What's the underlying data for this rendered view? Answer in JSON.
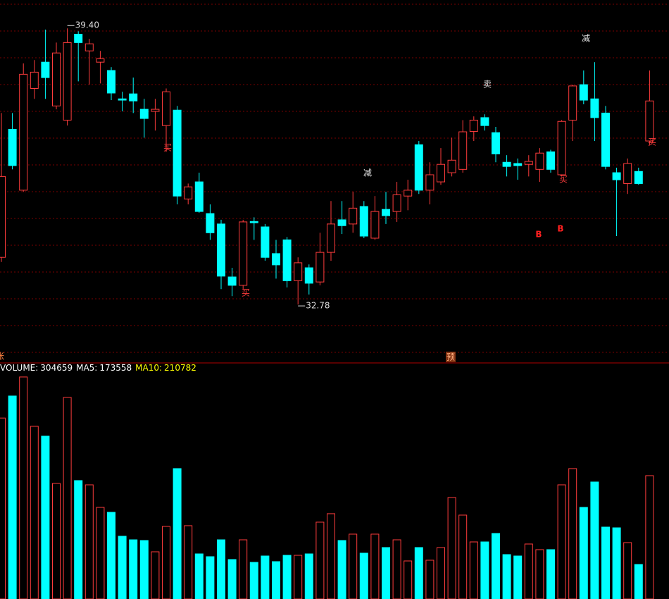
{
  "chart_data": [
    {
      "type": "candlestick",
      "open": [
        33.91,
        36.98,
        35.52,
        37.96,
        38.59,
        37.54,
        37.2,
        39.26,
        38.86,
        38.59,
        38.39,
        37.71,
        37.83,
        37.46,
        37.41,
        37.07,
        37.44,
        35.31,
        35.72,
        34.96,
        34.71,
        33.44,
        33.24,
        34.77,
        34.64,
        34.0,
        34.33,
        33.35,
        33.66,
        33.32,
        34.03,
        34.81,
        34.71,
        35.13,
        34.37,
        35.06,
        35.01,
        35.38,
        36.61,
        35.52,
        35.72,
        35.94,
        36.02,
        36.93,
        37.26,
        36.9,
        36.19,
        36.16,
        36.14,
        36.02,
        36.44,
        35.89,
        37.2,
        38.05,
        37.71,
        37.37,
        35.94,
        35.68,
        35.97,
        36.7
      ],
      "high": [
        37.37,
        37.37,
        38.56,
        38.64,
        39.37,
        39.06,
        39.4,
        39.33,
        39.15,
        38.86,
        38.47,
        37.88,
        38.22,
        37.71,
        37.71,
        37.96,
        37.54,
        35.68,
        35.94,
        35.18,
        34.81,
        33.66,
        34.81,
        34.87,
        34.71,
        34.33,
        34.4,
        33.91,
        33.74,
        34.5,
        35.26,
        35.26,
        35.48,
        35.26,
        35.38,
        35.48,
        35.72,
        35.77,
        36.7,
        36.19,
        36.53,
        36.78,
        37.2,
        37.29,
        37.34,
        37.04,
        36.36,
        36.28,
        36.36,
        36.53,
        36.49,
        37.2,
        38.05,
        38.39,
        38.59,
        37.54,
        36.06,
        36.28,
        36.06,
        38.39
      ],
      "low": [
        33.8,
        36.02,
        35.48,
        37.71,
        37.71,
        37.46,
        37.07,
        38.13,
        38.05,
        38.08,
        37.68,
        37.41,
        37.37,
        36.78,
        36.95,
        36.44,
        35.18,
        35.18,
        34.98,
        34.33,
        33.15,
        32.98,
        33.15,
        34.33,
        33.83,
        33.4,
        33.19,
        32.78,
        33.02,
        33.24,
        33.83,
        34.47,
        34.5,
        34.37,
        34.33,
        34.71,
        34.76,
        35.04,
        35.43,
        35.18,
        35.65,
        35.85,
        35.94,
        36.7,
        36.95,
        36.19,
        35.85,
        35.77,
        35.85,
        35.72,
        35.94,
        35.85,
        36.7,
        37.58,
        36.7,
        36.02,
        34.42,
        35.43,
        35.65,
        36.61
      ],
      "close": [
        35.85,
        36.11,
        38.3,
        38.35,
        38.22,
        38.81,
        39.06,
        39.06,
        39.03,
        38.67,
        37.85,
        37.68,
        37.66,
        37.24,
        37.46,
        37.88,
        35.38,
        35.6,
        35.01,
        34.5,
        33.46,
        33.24,
        34.76,
        34.74,
        33.91,
        33.73,
        33.35,
        33.78,
        33.29,
        34.03,
        34.71,
        34.67,
        35.09,
        34.42,
        35.01,
        34.91,
        35.41,
        35.52,
        35.52,
        35.89,
        36.14,
        36.24,
        36.92,
        37.2,
        37.07,
        36.39,
        36.09,
        36.11,
        36.21,
        36.41,
        36.02,
        37.17,
        38.02,
        37.68,
        37.26,
        36.09,
        35.77,
        36.16,
        35.68,
        37.66
      ],
      "ylim": [
        31.43,
        40.08
      ],
      "up_color": "#ff3c3c",
      "down_color": "#00ffff",
      "annotations": [
        {
          "value": 39.4,
          "label": "39.40"
        },
        {
          "value": 32.78,
          "label": "32.78"
        }
      ],
      "signals": [
        {
          "text": "买",
          "color": "#ff3c3c"
        },
        {
          "text": "买",
          "color": "#ff3c3c"
        },
        {
          "text": "减",
          "color": "#e0e0e0"
        },
        {
          "text": "卖",
          "color": "#e0e0e0"
        },
        {
          "text": "减",
          "color": "#e0e0e0"
        },
        {
          "text": "买",
          "color": "#ff3c3c"
        },
        {
          "text": "买",
          "color": "#ff3c3c"
        },
        {
          "text": "B",
          "color": "#ff2020"
        },
        {
          "text": "B",
          "color": "#ff2020"
        }
      ]
    },
    {
      "type": "bar",
      "values": [
        447000,
        501400,
        548400,
        426500,
        402200,
        285500,
        497900,
        292500,
        282000,
        226300,
        214100,
        155000,
        146200,
        144500,
        116600,
        179300,
        322100,
        181100,
        111400,
        104500,
        146200,
        97500,
        146200,
        90500,
        106200,
        92300,
        107900,
        107900,
        111400,
        189800,
        210700,
        144500,
        160200,
        113200,
        160200,
        127100,
        146200,
        94000,
        127100,
        95800,
        127100,
        250700,
        207200,
        141000,
        141000,
        161900,
        109700,
        106200,
        135800,
        121900,
        121900,
        282000,
        322100,
        226300,
        289000,
        177600,
        175800,
        139300,
        85300,
        304659
      ],
      "ylim": [
        0,
        557000
      ],
      "legend": [
        {
          "label": "VOLUME:",
          "value": 304659,
          "color": "#ffffff"
        },
        {
          "label": "MA5:",
          "value": 173558,
          "color": "#ffffff"
        },
        {
          "label": "MA10:",
          "value": 210782,
          "color": "#ffff00"
        }
      ]
    }
  ],
  "status_marks": [
    "张",
    "预"
  ]
}
